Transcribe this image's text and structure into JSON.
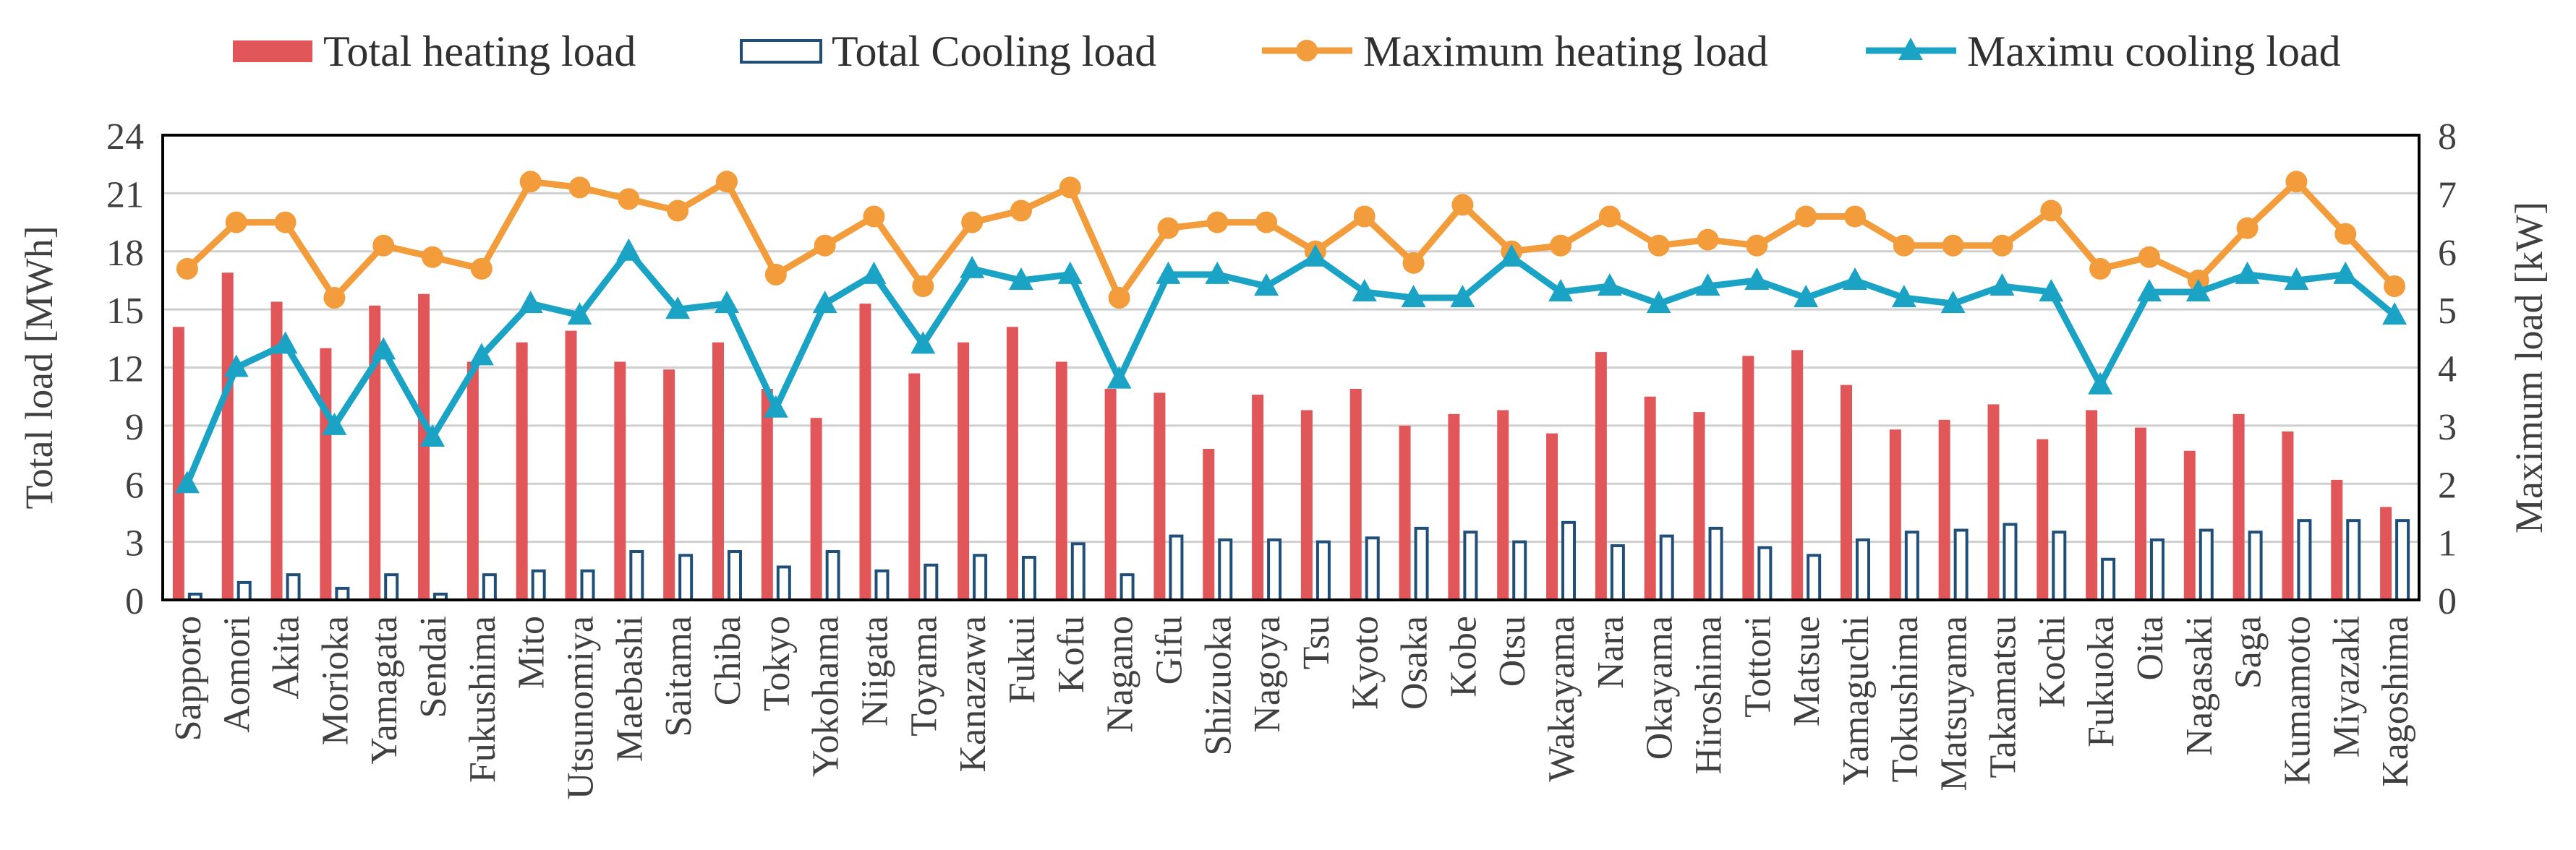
{
  "chart_data": {
    "type": "bar",
    "title": "",
    "xlabel": "",
    "ylabel": "Total load [MWh]",
    "y2label": "Maximum load [kW]",
    "ylim": [
      0,
      24
    ],
    "y2lim": [
      0,
      8
    ],
    "yticks": [
      "0",
      "3",
      "6",
      "9",
      "12",
      "15",
      "18",
      "21",
      "24"
    ],
    "y2ticks": [
      "0",
      "1",
      "2",
      "3",
      "4",
      "5",
      "6",
      "7",
      "8"
    ],
    "grid": true,
    "legend_position": "top",
    "categories": [
      "Sapporo",
      "Aomori",
      "Akita",
      "Morioka",
      "Yamagata",
      "Sendai",
      "Fukushima",
      "Mito",
      "Utsunomiya",
      "Maebashi",
      "Saitama",
      "Chiba",
      "Tokyo",
      "Yokohama",
      "Niigata",
      "Toyama",
      "Kanazawa",
      "Fukui",
      "Kofu",
      "Nagano",
      "Gifu",
      "Shizuoka",
      "Nagoya",
      "Tsu",
      "Kyoto",
      "Osaka",
      "Kobe",
      "Otsu",
      "Wakayama",
      "Nara",
      "Okayama",
      "Hiroshima",
      "Tottori",
      "Matsue",
      "Yamaguchi",
      "Tokushima",
      "Matsuyama",
      "Takamatsu",
      "Kochi",
      "Fukuoka",
      "Oita",
      "Nagasaki",
      "Saga",
      "Kumamoto",
      "Miyazaki",
      "Kagoshima"
    ],
    "series": [
      {
        "name": "Total heating load",
        "kind": "bar",
        "axis": "left",
        "color": "#e15759",
        "values": [
          14.1,
          16.9,
          15.4,
          13.0,
          15.2,
          15.8,
          12.3,
          13.3,
          13.9,
          12.3,
          11.9,
          13.3,
          10.9,
          9.4,
          15.3,
          11.7,
          13.3,
          14.1,
          12.3,
          10.9,
          10.7,
          7.8,
          10.6,
          9.8,
          10.9,
          9.0,
          9.6,
          9.8,
          8.6,
          12.8,
          10.5,
          9.7,
          12.6,
          12.9,
          11.1,
          8.8,
          9.3,
          10.1,
          8.3,
          9.8,
          8.9,
          7.7,
          9.6,
          8.7,
          6.2,
          4.8
        ]
      },
      {
        "name": "Total Cooling load",
        "kind": "bar",
        "axis": "left",
        "color": "#1f4e79",
        "values": [
          0.3,
          0.9,
          1.3,
          0.6,
          1.3,
          0.3,
          1.3,
          1.5,
          1.5,
          2.5,
          2.3,
          2.5,
          1.7,
          2.5,
          1.5,
          1.8,
          2.3,
          2.2,
          2.9,
          1.3,
          3.3,
          3.1,
          3.1,
          3.0,
          3.2,
          3.7,
          3.5,
          3.0,
          4.0,
          2.8,
          3.3,
          3.7,
          2.7,
          2.3,
          3.1,
          3.5,
          3.6,
          3.9,
          3.5,
          2.1,
          3.1,
          3.6,
          3.5,
          4.1,
          4.1,
          4.1
        ]
      },
      {
        "name": "Maximum heating load",
        "kind": "line",
        "marker": "circle",
        "axis": "right",
        "color": "#f39c3c",
        "values": [
          5.7,
          6.5,
          6.5,
          5.2,
          6.1,
          5.9,
          5.7,
          7.2,
          7.1,
          6.9,
          6.7,
          7.2,
          5.6,
          6.1,
          6.6,
          5.4,
          6.5,
          6.7,
          7.1,
          5.2,
          6.4,
          6.5,
          6.5,
          6.0,
          6.6,
          5.8,
          6.8,
          6.0,
          6.1,
          6.6,
          6.1,
          6.2,
          6.1,
          6.6,
          6.6,
          6.1,
          6.1,
          6.1,
          6.7,
          5.7,
          5.9,
          5.5,
          6.4,
          7.2,
          6.3,
          5.4
        ]
      },
      {
        "name": "Maximu cooling load",
        "kind": "line",
        "marker": "triangle",
        "axis": "right",
        "color": "#1ba3c6",
        "values": [
          2.0,
          4.0,
          4.4,
          3.0,
          4.3,
          2.8,
          4.2,
          5.1,
          4.9,
          6.0,
          5.0,
          5.1,
          3.3,
          5.1,
          5.6,
          4.4,
          5.7,
          5.5,
          5.6,
          3.8,
          5.6,
          5.6,
          5.4,
          5.9,
          5.3,
          5.2,
          5.2,
          5.9,
          5.3,
          5.4,
          5.1,
          5.4,
          5.5,
          5.2,
          5.5,
          5.2,
          5.1,
          5.4,
          5.3,
          3.7,
          5.3,
          5.3,
          5.6,
          5.5,
          5.6,
          4.9
        ]
      }
    ]
  }
}
